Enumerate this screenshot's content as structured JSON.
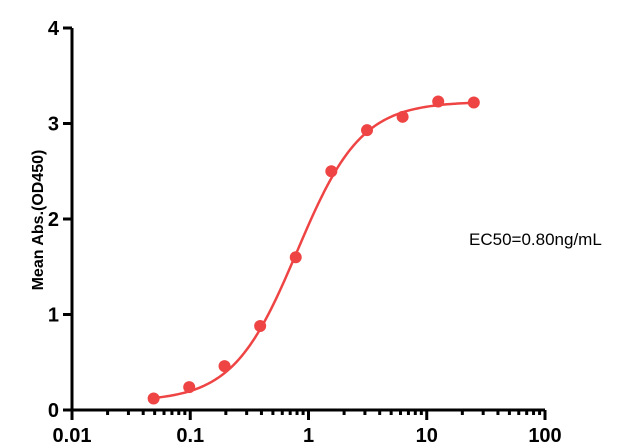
{
  "chart_data": {
    "type": "scatter",
    "title": "",
    "xlabel": "",
    "ylabel": "Mean Abs.(OD450)",
    "x_scale": "log",
    "xlim": [
      0.01,
      100
    ],
    "ylim": [
      0,
      4
    ],
    "x_ticks": [
      0.01,
      0.1,
      1,
      10,
      100
    ],
    "x_tick_labels": [
      "0.01",
      "0.1",
      "1",
      "10",
      "100"
    ],
    "y_ticks": [
      0,
      1,
      2,
      3,
      4
    ],
    "y_tick_labels": [
      "0",
      "1",
      "2",
      "3",
      "4"
    ],
    "grid": false,
    "legend": "none",
    "annotation": "EC50=0.80ng/mL",
    "series": [
      {
        "color": "#ef4444",
        "x": [
          0.049,
          0.098,
          0.195,
          0.39,
          0.78,
          1.56,
          3.125,
          6.25,
          12.5,
          25
        ],
        "y": [
          0.12,
          0.24,
          0.46,
          0.88,
          1.6,
          2.5,
          2.93,
          3.07,
          3.23,
          3.22
        ]
      }
    ],
    "fit_curve": {
      "model": "4PL",
      "bottom": 0.09,
      "top": 3.23,
      "ec50": 0.8,
      "hill": 1.6,
      "x_range": [
        0.049,
        25
      ]
    }
  }
}
